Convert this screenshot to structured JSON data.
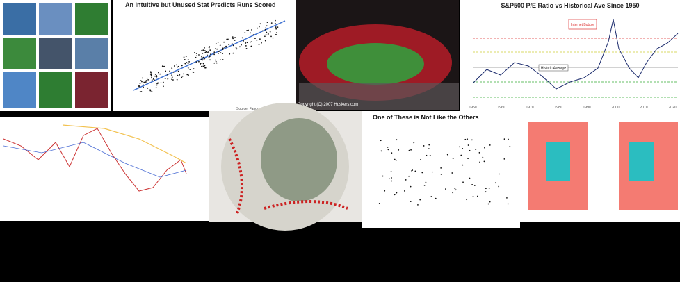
{
  "tiles": {
    "runs_chart": {
      "title": "An Intuitive but Unused Stat Predicts Runs Scored",
      "caption": "Source: Fangraphs | (C) Colin Doughney"
    },
    "stadium": {
      "caption": "Copyright (C) 2007 Huskers.com"
    },
    "pe_chart": {
      "title": "S&P500 P/E Ratio vs Historical Ave Since 1950",
      "annotations": [
        "Internet Bubble",
        "Historic Average"
      ],
      "x_labels": [
        "1950",
        "1960",
        "1970",
        "1980",
        "1990",
        "2000",
        "2010",
        "2020"
      ]
    },
    "others_chart": {
      "title": "One of These is Not Like the Others"
    }
  }
}
